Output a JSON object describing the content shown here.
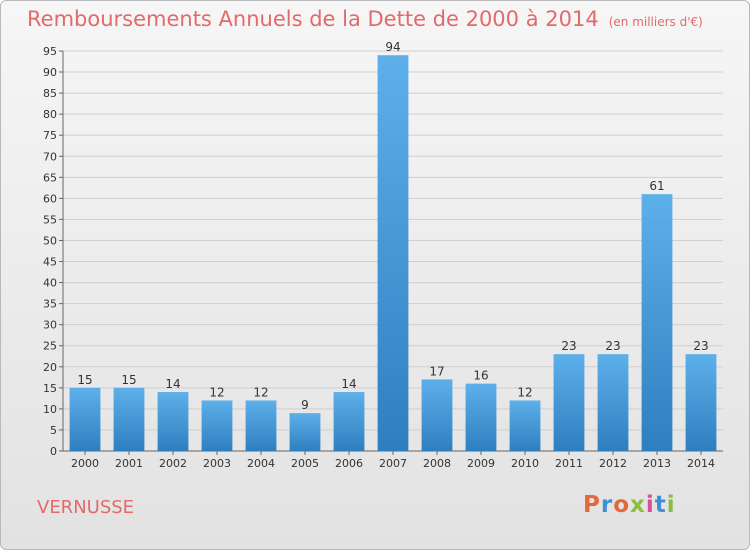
{
  "chart_data": {
    "type": "bar",
    "title": "Remboursements Annuels de la Dette de 2000 à 2014",
    "subtitle": "(en milliers d'€)",
    "categories": [
      "2000",
      "2001",
      "2002",
      "2003",
      "2004",
      "2005",
      "2006",
      "2007",
      "2008",
      "2009",
      "2010",
      "2011",
      "2012",
      "2013",
      "2014"
    ],
    "values": [
      15,
      15,
      14,
      12,
      12,
      9,
      14,
      94,
      17,
      16,
      12,
      23,
      23,
      61,
      23
    ],
    "ylim": [
      0,
      95
    ],
    "yticks": [
      0,
      5,
      10,
      15,
      20,
      25,
      30,
      35,
      40,
      45,
      50,
      55,
      60,
      65,
      70,
      75,
      80,
      85,
      90,
      95
    ],
    "grid": true,
    "bar_color": "#3f96d8"
  },
  "commune": "VERNUSSE",
  "logo": {
    "text": "Proxiti",
    "colors": [
      "#e5683a",
      "#3d8fd6",
      "#e5683a",
      "#8cbd3f",
      "#d94f9a",
      "#3d8fd6",
      "#8cbd3f"
    ]
  }
}
